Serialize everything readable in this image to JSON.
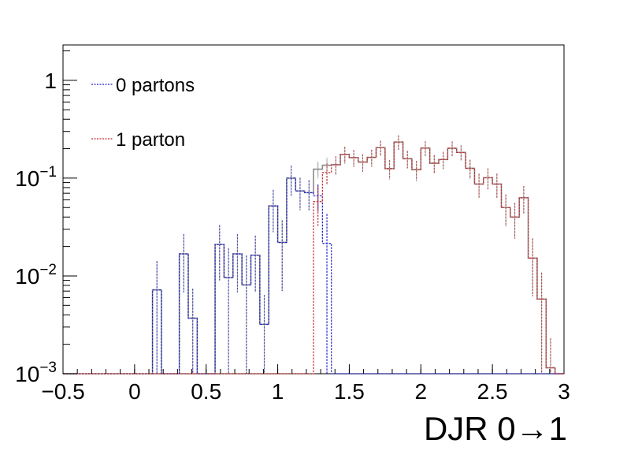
{
  "chart_data": {
    "type": "histogram",
    "xlabel": "DJR 0→1",
    "ylabel": "",
    "xlim": [
      -0.5,
      3.0
    ],
    "ylim": [
      0.001,
      2.3
    ],
    "yscale": "log",
    "x_ticks": [
      "−0.5",
      "0",
      "0.5",
      "1",
      "1.5",
      "2",
      "2.5",
      "3"
    ],
    "x_tick_values": [
      -0.5,
      0,
      0.5,
      1,
      1.5,
      2,
      2.5,
      3
    ],
    "y_ticks": [
      {
        "value": 0.001,
        "base": "10",
        "exp": "−3"
      },
      {
        "value": 0.01,
        "base": "10",
        "exp": "−2"
      },
      {
        "value": 0.1,
        "base": "10",
        "exp": "−1"
      },
      {
        "value": 1,
        "base": "1",
        "exp": ""
      }
    ],
    "bin_width": 0.0625,
    "bin_start": -0.5,
    "legend": {
      "placement": "top-left",
      "entries": [
        {
          "label": "0 partons",
          "color": "#1d22c7",
          "style": "dashed"
        },
        {
          "label": "1 parton",
          "color": "#c72d2d",
          "style": "dashed"
        }
      ]
    },
    "series": [
      {
        "name": "0 partons",
        "color": "#1d22c7",
        "values": [
          0,
          0,
          0,
          0,
          0,
          0,
          0,
          0,
          0,
          0,
          0.0072,
          0,
          0,
          0.0168,
          0.0037,
          0,
          0,
          0.021,
          0.0096,
          0.0168,
          0.0081,
          0.0163,
          0.0032,
          0.052,
          0.022,
          0.1,
          0.074,
          0.071,
          0.066,
          0.0215,
          0,
          0,
          0,
          0,
          0,
          0,
          0,
          0,
          0,
          0,
          0,
          0,
          0,
          0,
          0,
          0,
          0,
          0,
          0,
          0,
          0,
          0,
          0,
          0,
          0,
          0
        ],
        "errors": [
          0,
          0,
          0,
          0,
          0,
          0,
          0,
          0,
          0,
          0,
          0.007,
          0,
          0,
          0.01,
          0.0037,
          0,
          0,
          0.012,
          0.0096,
          0.01,
          0.0081,
          0.0095,
          0.0032,
          0.024,
          0.015,
          0.034,
          0.027,
          0.024,
          0.02,
          0.0215,
          0,
          0,
          0,
          0,
          0,
          0,
          0,
          0,
          0,
          0,
          0,
          0,
          0,
          0,
          0,
          0,
          0,
          0,
          0,
          0,
          0,
          0,
          0,
          0,
          0,
          0
        ]
      },
      {
        "name": "1 parton",
        "color": "#c72d2d",
        "values": [
          0,
          0,
          0,
          0,
          0,
          0,
          0,
          0,
          0,
          0,
          0,
          0,
          0,
          0,
          0,
          0,
          0,
          0,
          0,
          0,
          0,
          0,
          0,
          0,
          0,
          0,
          0,
          0,
          0.0575,
          0.114,
          0.137,
          0.175,
          0.162,
          0.146,
          0.163,
          0.205,
          0.125,
          0.234,
          0.158,
          0.122,
          0.203,
          0.142,
          0.155,
          0.202,
          0.183,
          0.126,
          0.087,
          0.101,
          0.087,
          0.05,
          0.04,
          0.063,
          0.0152,
          0.0058,
          0.00115,
          0
        ],
        "errors": [
          0,
          0,
          0,
          0,
          0,
          0,
          0,
          0,
          0,
          0,
          0,
          0,
          0,
          0,
          0,
          0,
          0,
          0,
          0,
          0,
          0,
          0,
          0,
          0,
          0,
          0,
          0,
          0,
          0.025,
          0.028,
          0.03,
          0.034,
          0.032,
          0.03,
          0.032,
          0.036,
          0.028,
          0.04,
          0.032,
          0.028,
          0.035,
          0.03,
          0.031,
          0.035,
          0.033,
          0.028,
          0.024,
          0.025,
          0.024,
          0.018,
          0.016,
          0.02,
          0.009,
          0.005,
          0.00115,
          0
        ]
      }
    ]
  }
}
